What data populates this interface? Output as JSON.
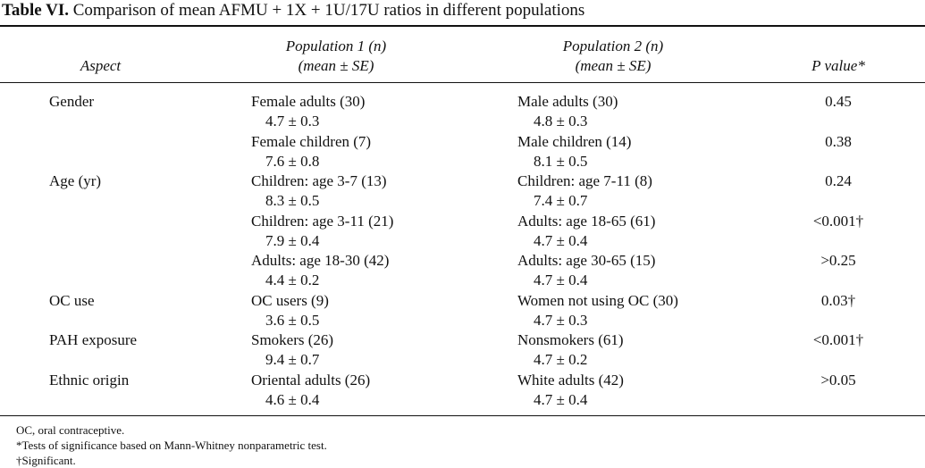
{
  "table": {
    "label": "Table VI.",
    "title": "Comparison of mean AFMU + 1X + 1U/17U ratios in different populations",
    "headers": {
      "aspect": "Aspect",
      "pop1_line1": "Population 1 (n)",
      "pop1_line2": "(mean ± SE)",
      "pop2_line1": "Population 2 (n)",
      "pop2_line2": "(mean ± SE)",
      "pvalue": "P value*"
    },
    "rows": [
      {
        "aspect": "Gender",
        "pop1": "Female adults (30)",
        "pop1_val": "4.7 ± 0.3",
        "pop2": "Male adults (30)",
        "pop2_val": "4.8 ± 0.3",
        "p": "0.45"
      },
      {
        "aspect": "",
        "pop1": "Female children (7)",
        "pop1_val": "7.6 ± 0.8",
        "pop2": "Male children (14)",
        "pop2_val": "8.1 ± 0.5",
        "p": "0.38"
      },
      {
        "aspect": "Age (yr)",
        "pop1": "Children: age 3-7 (13)",
        "pop1_val": "8.3 ± 0.5",
        "pop2": "Children: age 7-11 (8)",
        "pop2_val": "7.4 ± 0.7",
        "p": "0.24"
      },
      {
        "aspect": "",
        "pop1": "Children: age 3-11 (21)",
        "pop1_val": "7.9 ± 0.4",
        "pop2": "Adults: age 18-65 (61)",
        "pop2_val": "4.7 ± 0.4",
        "p": "<0.001†"
      },
      {
        "aspect": "",
        "pop1": "Adults: age 18-30 (42)",
        "pop1_val": "4.4 ± 0.2",
        "pop2": "Adults: age 30-65 (15)",
        "pop2_val": "4.7 ± 0.4",
        "p": ">0.25"
      },
      {
        "aspect": "OC use",
        "pop1": "OC users (9)",
        "pop1_val": "3.6 ± 0.5",
        "pop2": "Women not using OC (30)",
        "pop2_val": "4.7 ± 0.3",
        "p": "0.03†"
      },
      {
        "aspect": "PAH exposure",
        "pop1": "Smokers (26)",
        "pop1_val": "9.4 ± 0.7",
        "pop2": "Nonsmokers (61)",
        "pop2_val": "4.7 ± 0.2",
        "p": "<0.001†"
      },
      {
        "aspect": "Ethnic origin",
        "pop1": "Oriental adults (26)",
        "pop1_val": "4.6 ± 0.4",
        "pop2": "White adults (42)",
        "pop2_val": "4.7 ± 0.4",
        "p": ">0.05"
      }
    ],
    "footnotes": [
      "OC, oral contraceptive.",
      "*Tests of significance based on Mann-Whitney nonparametric test.",
      "†Significant."
    ]
  }
}
